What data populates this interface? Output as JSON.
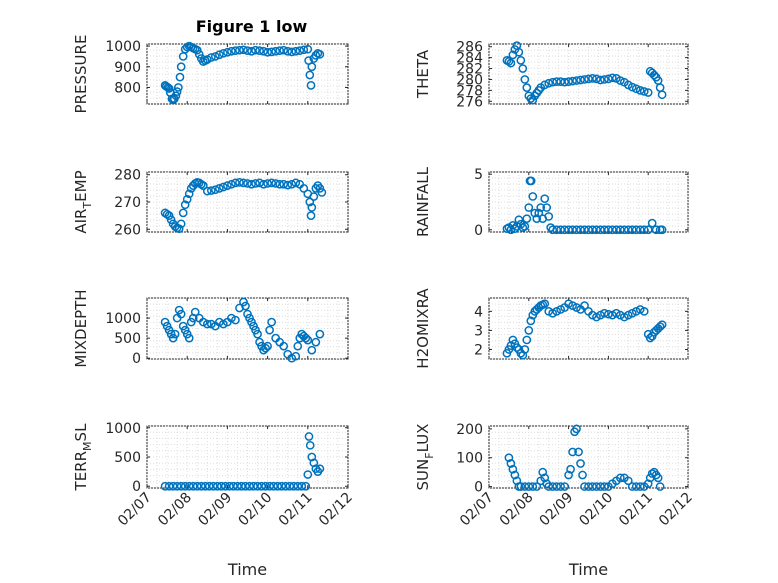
{
  "chart_data": [
    {
      "type": "scatter",
      "title": "Figure 1 low",
      "ylabel": "PRESSURE",
      "xlabel": "",
      "ylim": [
        720,
        1010
      ],
      "yticks": [
        800,
        900,
        1000
      ],
      "xlim": [
        0,
        5
      ],
      "xticks": [
        0,
        1,
        2,
        3,
        4,
        5
      ],
      "xticklabels": [],
      "color": "#0072BD",
      "series": [
        {
          "name": "PRESSURE",
          "x": [
            0.45,
            0.48,
            0.52,
            0.55,
            0.58,
            0.62,
            0.65,
            0.68,
            0.72,
            0.75,
            0.78,
            0.82,
            0.85,
            0.9,
            0.95,
            1.0,
            1.05,
            1.1,
            1.15,
            1.2,
            1.25,
            1.3,
            1.35,
            1.4,
            1.45,
            1.5,
            1.6,
            1.7,
            1.8,
            1.9,
            2.0,
            2.1,
            2.2,
            2.3,
            2.4,
            2.5,
            2.6,
            2.7,
            2.8,
            2.9,
            3.0,
            3.1,
            3.2,
            3.3,
            3.4,
            3.5,
            3.6,
            3.7,
            3.8,
            3.9,
            4.0,
            4.02,
            4.05,
            4.08,
            4.1,
            4.15,
            4.2,
            4.25,
            4.3
          ],
          "values": [
            810,
            805,
            800,
            795,
            775,
            745,
            740,
            745,
            760,
            780,
            800,
            850,
            900,
            950,
            985,
            995,
            1000,
            995,
            990,
            985,
            980,
            960,
            940,
            925,
            930,
            935,
            945,
            950,
            958,
            965,
            970,
            975,
            978,
            980,
            982,
            978,
            975,
            980,
            978,
            975,
            970,
            972,
            975,
            978,
            980,
            975,
            972,
            975,
            978,
            982,
            985,
            930,
            860,
            810,
            900,
            940,
            955,
            965,
            960
          ]
        }
      ]
    },
    {
      "type": "scatter",
      "title": "",
      "ylabel": "THETA",
      "xlabel": "",
      "ylim": [
        275.5,
        286.5
      ],
      "yticks": [
        276,
        278,
        280,
        282,
        284,
        286
      ],
      "xlim": [
        0,
        5
      ],
      "xticks": [
        0,
        1,
        2,
        3,
        4,
        5
      ],
      "xticklabels": [],
      "color": "#0072BD",
      "series": [
        {
          "name": "THETA",
          "x": [
            0.45,
            0.5,
            0.55,
            0.6,
            0.65,
            0.7,
            0.75,
            0.8,
            0.85,
            0.9,
            0.95,
            1.0,
            1.05,
            1.1,
            1.15,
            1.2,
            1.25,
            1.3,
            1.4,
            1.5,
            1.6,
            1.7,
            1.8,
            1.9,
            2.0,
            2.1,
            2.2,
            2.3,
            2.4,
            2.5,
            2.6,
            2.7,
            2.8,
            2.9,
            3.0,
            3.1,
            3.2,
            3.3,
            3.4,
            3.5,
            3.6,
            3.7,
            3.8,
            3.9,
            4.0,
            4.05,
            4.1,
            4.15,
            4.2,
            4.25,
            4.3,
            4.35
          ],
          "values": [
            283.5,
            283.3,
            283.0,
            284.5,
            285.5,
            286.2,
            285.0,
            283.5,
            282.0,
            280.0,
            278.5,
            277.0,
            276.5,
            276.2,
            277.0,
            277.5,
            278.0,
            278.5,
            279.0,
            279.3,
            279.5,
            279.6,
            279.6,
            279.5,
            279.6,
            279.7,
            279.8,
            279.9,
            280.0,
            280.1,
            280.2,
            280.1,
            279.9,
            280.0,
            280.1,
            280.3,
            280.2,
            279.8,
            279.5,
            279.0,
            278.6,
            278.3,
            278.0,
            277.8,
            277.6,
            281.5,
            281.2,
            280.8,
            280.4,
            279.8,
            278.5,
            277.2
          ]
        }
      ]
    },
    {
      "type": "scatter",
      "title": "",
      "ylabel": "AIR_TEMP",
      "ylabel_main": "AIR",
      "ylabel_sub": "T",
      "ylabel_rest": "EMP",
      "xlabel": "",
      "ylim": [
        259,
        281
      ],
      "yticks": [
        260,
        270,
        280
      ],
      "xlim": [
        0,
        5
      ],
      "xticks": [
        0,
        1,
        2,
        3,
        4,
        5
      ],
      "xticklabels": [],
      "color": "#0072BD",
      "series": [
        {
          "name": "AIR_TEMP",
          "x": [
            0.45,
            0.5,
            0.55,
            0.6,
            0.65,
            0.7,
            0.75,
            0.8,
            0.85,
            0.9,
            0.95,
            1.0,
            1.05,
            1.1,
            1.15,
            1.2,
            1.25,
            1.3,
            1.35,
            1.4,
            1.5,
            1.6,
            1.7,
            1.8,
            1.9,
            2.0,
            2.1,
            2.2,
            2.3,
            2.4,
            2.5,
            2.6,
            2.7,
            2.8,
            2.9,
            3.0,
            3.1,
            3.2,
            3.3,
            3.4,
            3.5,
            3.6,
            3.7,
            3.8,
            3.9,
            4.0,
            4.05,
            4.08,
            4.1,
            4.15,
            4.2,
            4.25,
            4.3,
            4.35
          ],
          "values": [
            266.0,
            265.5,
            265.0,
            263.5,
            262.0,
            261.0,
            260.5,
            260.2,
            262.0,
            266.0,
            269.0,
            271.0,
            273.0,
            275.0,
            276.0,
            276.8,
            277.2,
            277.0,
            276.5,
            276.0,
            274.0,
            274.2,
            274.5,
            275.0,
            275.5,
            276.0,
            276.5,
            277.0,
            277.2,
            277.0,
            276.8,
            276.5,
            276.8,
            277.0,
            276.5,
            276.8,
            277.0,
            276.8,
            276.5,
            276.5,
            276.2,
            276.5,
            277.0,
            276.5,
            275.0,
            273.0,
            270.0,
            265.0,
            268.0,
            272.0,
            275.0,
            276.0,
            275.0,
            273.5
          ]
        }
      ]
    },
    {
      "type": "scatter",
      "title": "",
      "ylabel": "RAINFALL",
      "xlabel": "",
      "ylim": [
        -0.2,
        5.2
      ],
      "yticks": [
        0,
        5
      ],
      "xlim": [
        0,
        5
      ],
      "xticks": [
        0,
        1,
        2,
        3,
        4,
        5
      ],
      "xticklabels": [],
      "color": "#0072BD",
      "series": [
        {
          "name": "RAINFALL",
          "x": [
            0.45,
            0.5,
            0.55,
            0.6,
            0.65,
            0.7,
            0.75,
            0.8,
            0.85,
            0.9,
            0.95,
            1.0,
            1.03,
            1.06,
            1.1,
            1.15,
            1.2,
            1.25,
            1.3,
            1.35,
            1.4,
            1.45,
            1.5,
            1.55,
            1.6,
            1.7,
            1.8,
            1.9,
            2.0,
            2.1,
            2.2,
            2.3,
            2.4,
            2.5,
            2.6,
            2.7,
            2.8,
            2.9,
            3.0,
            3.1,
            3.2,
            3.3,
            3.4,
            3.5,
            3.6,
            3.7,
            3.8,
            3.9,
            4.0,
            4.1,
            4.2,
            4.3,
            4.35
          ],
          "values": [
            0.1,
            0.2,
            0.0,
            0.4,
            0.1,
            0.3,
            0.9,
            0.5,
            0.2,
            0.3,
            1.0,
            2.0,
            4.4,
            4.4,
            3.0,
            1.5,
            1.0,
            1.5,
            2.0,
            1.0,
            2.8,
            2.0,
            1.2,
            0.2,
            0.0,
            0.0,
            0.0,
            0.0,
            0.0,
            0.0,
            0.0,
            0.0,
            0.0,
            0.0,
            0.0,
            0.0,
            0.0,
            0.0,
            0.0,
            0.0,
            0.0,
            0.0,
            0.0,
            0.0,
            0.0,
            0.0,
            0.0,
            0.0,
            0.0,
            0.6,
            0.0,
            0.0,
            0.0
          ]
        }
      ]
    },
    {
      "type": "scatter",
      "title": "",
      "ylabel": "MIXDEPTH",
      "xlabel": "",
      "ylim": [
        -20,
        1500
      ],
      "yticks": [
        0,
        500,
        1000
      ],
      "xlim": [
        0,
        5
      ],
      "xticks": [
        0,
        1,
        2,
        3,
        4,
        5
      ],
      "xticklabels": [],
      "color": "#0072BD",
      "series": [
        {
          "name": "MIXDEPTH",
          "x": [
            0.45,
            0.5,
            0.55,
            0.6,
            0.65,
            0.7,
            0.75,
            0.8,
            0.85,
            0.9,
            0.95,
            1.0,
            1.05,
            1.1,
            1.15,
            1.2,
            1.3,
            1.4,
            1.5,
            1.6,
            1.7,
            1.8,
            1.9,
            2.0,
            2.1,
            2.2,
            2.3,
            2.4,
            2.45,
            2.5,
            2.55,
            2.6,
            2.65,
            2.7,
            2.75,
            2.8,
            2.85,
            2.9,
            2.95,
            3.0,
            3.05,
            3.1,
            3.2,
            3.3,
            3.4,
            3.5,
            3.6,
            3.7,
            3.75,
            3.8,
            3.85,
            3.9,
            3.95,
            4.0,
            4.1,
            4.2,
            4.3
          ],
          "values": [
            900,
            800,
            700,
            600,
            500,
            600,
            1000,
            1200,
            1100,
            800,
            700,
            600,
            500,
            900,
            1000,
            1150,
            1000,
            900,
            850,
            850,
            800,
            900,
            850,
            900,
            1000,
            950,
            1250,
            1400,
            1300,
            1100,
            1000,
            900,
            800,
            700,
            600,
            400,
            300,
            200,
            250,
            300,
            700,
            900,
            500,
            400,
            300,
            100,
            0,
            50,
            300,
            500,
            600,
            550,
            500,
            450,
            200,
            400,
            600
          ]
        }
      ]
    },
    {
      "type": "scatter",
      "title": "",
      "ylabel": "H2OMIXRA",
      "xlabel": "",
      "ylim": [
        1.5,
        4.7
      ],
      "yticks": [
        2,
        3,
        4
      ],
      "xlim": [
        0,
        5
      ],
      "xticks": [
        0,
        1,
        2,
        3,
        4,
        5
      ],
      "xticklabels": [],
      "color": "#0072BD",
      "series": [
        {
          "name": "H2OMIXRA",
          "x": [
            0.45,
            0.5,
            0.55,
            0.6,
            0.65,
            0.7,
            0.75,
            0.8,
            0.85,
            0.9,
            0.95,
            1.0,
            1.05,
            1.1,
            1.15,
            1.2,
            1.25,
            1.3,
            1.35,
            1.4,
            1.5,
            1.6,
            1.7,
            1.8,
            1.9,
            2.0,
            2.1,
            2.2,
            2.3,
            2.4,
            2.5,
            2.6,
            2.7,
            2.8,
            2.9,
            3.0,
            3.1,
            3.2,
            3.3,
            3.4,
            3.5,
            3.6,
            3.7,
            3.8,
            3.9,
            4.0,
            4.05,
            4.1,
            4.15,
            4.2,
            4.25,
            4.3,
            4.35
          ],
          "values": [
            1.8,
            2.0,
            2.2,
            2.5,
            2.3,
            2.1,
            2.0,
            1.8,
            1.7,
            2.0,
            2.5,
            3.0,
            3.5,
            3.8,
            4.0,
            4.1,
            4.2,
            4.3,
            4.35,
            4.4,
            4.0,
            3.9,
            4.0,
            4.1,
            4.2,
            4.4,
            4.3,
            4.2,
            4.1,
            4.3,
            4.0,
            3.8,
            3.7,
            3.8,
            3.9,
            3.85,
            3.8,
            3.9,
            3.8,
            3.7,
            3.8,
            3.9,
            4.0,
            4.1,
            4.0,
            2.8,
            2.6,
            2.7,
            2.9,
            3.0,
            3.1,
            3.2,
            3.3
          ]
        }
      ]
    },
    {
      "type": "scatter",
      "title": "",
      "ylabel": "TERR_MSL",
      "ylabel_main": "TERR",
      "ylabel_sub": "M",
      "ylabel_rest": "SL",
      "xlabel": "Time",
      "ylim": [
        -30,
        1030
      ],
      "yticks": [
        0,
        500,
        1000
      ],
      "xlim": [
        0,
        5
      ],
      "xticks": [
        0,
        1,
        2,
        3,
        4,
        5
      ],
      "xticklabels": [
        "02/07",
        "02/08",
        "02/09",
        "02/10",
        "02/11",
        "02/12"
      ],
      "color": "#0072BD",
      "series": [
        {
          "name": "TERR_MSL",
          "x": [
            0.45,
            0.55,
            0.65,
            0.75,
            0.85,
            0.95,
            1.05,
            1.15,
            1.25,
            1.35,
            1.45,
            1.55,
            1.65,
            1.75,
            1.85,
            1.95,
            2.05,
            2.15,
            2.25,
            2.35,
            2.45,
            2.55,
            2.65,
            2.75,
            2.85,
            2.95,
            3.05,
            3.15,
            3.25,
            3.35,
            3.45,
            3.55,
            3.65,
            3.75,
            3.85,
            3.95,
            4.0,
            4.03,
            4.06,
            4.1,
            4.15,
            4.2,
            4.25,
            4.3
          ],
          "values": [
            0,
            0,
            0,
            0,
            0,
            0,
            0,
            0,
            0,
            0,
            0,
            0,
            0,
            0,
            0,
            0,
            0,
            0,
            0,
            0,
            0,
            0,
            0,
            0,
            0,
            0,
            0,
            0,
            0,
            0,
            0,
            0,
            0,
            0,
            0,
            0,
            200,
            850,
            700,
            500,
            400,
            300,
            250,
            300
          ]
        }
      ]
    },
    {
      "type": "scatter",
      "title": "",
      "ylabel": "SUN_FLUX",
      "ylabel_main": "SUN",
      "ylabel_sub": "F",
      "ylabel_rest": "LUX",
      "xlabel": "Time",
      "ylim": [
        -5,
        210
      ],
      "yticks": [
        0,
        100,
        200
      ],
      "xlim": [
        0,
        5
      ],
      "xticks": [
        0,
        1,
        2,
        3,
        4,
        5
      ],
      "xticklabels": [
        "02/07",
        "02/08",
        "02/09",
        "02/10",
        "02/11",
        "02/12"
      ],
      "color": "#0072BD",
      "series": [
        {
          "name": "SUN_FLUX",
          "x": [
            0.5,
            0.55,
            0.6,
            0.65,
            0.7,
            0.75,
            0.8,
            0.9,
            1.0,
            1.1,
            1.2,
            1.3,
            1.35,
            1.4,
            1.45,
            1.5,
            1.6,
            1.7,
            1.8,
            1.9,
            2.0,
            2.05,
            2.1,
            2.15,
            2.2,
            2.25,
            2.3,
            2.35,
            2.4,
            2.5,
            2.6,
            2.7,
            2.8,
            2.9,
            3.0,
            3.1,
            3.2,
            3.3,
            3.4,
            3.5,
            3.6,
            3.7,
            3.8,
            3.9,
            4.0,
            4.05,
            4.1,
            4.15,
            4.2,
            4.25,
            4.3
          ],
          "values": [
            100,
            80,
            60,
            40,
            20,
            0,
            0,
            0,
            0,
            0,
            0,
            20,
            50,
            30,
            10,
            0,
            0,
            0,
            0,
            0,
            40,
            60,
            120,
            190,
            200,
            120,
            80,
            40,
            0,
            0,
            0,
            0,
            0,
            0,
            0,
            10,
            20,
            30,
            30,
            20,
            0,
            0,
            0,
            0,
            10,
            30,
            45,
            50,
            40,
            30,
            0
          ]
        }
      ]
    }
  ]
}
